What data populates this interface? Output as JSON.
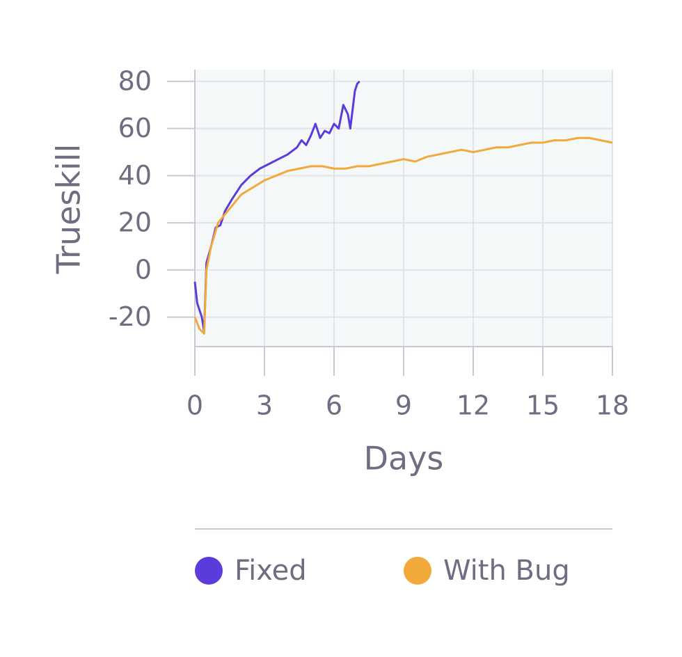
{
  "chart_data": {
    "type": "line",
    "x_label": "Days",
    "y_label": "Trueskill",
    "xlim": [
      0,
      18
    ],
    "xticks": [
      0,
      3,
      6,
      9,
      12,
      15,
      18
    ],
    "ylim": [
      -32.5,
      85
    ],
    "yticks": [
      -20,
      0,
      20,
      40,
      60,
      80
    ],
    "grid": true,
    "legend": "bottom",
    "series": [
      {
        "name": "Fixed",
        "color": "#5b3bdb",
        "x": [
          0,
          0.1,
          0.3,
          0.4,
          0.5,
          0.7,
          0.9,
          1.1,
          1.3,
          1.6,
          2.0,
          2.4,
          2.8,
          3.2,
          3.6,
          4.0,
          4.4,
          4.6,
          4.8,
          5.0,
          5.2,
          5.4,
          5.6,
          5.8,
          6.0,
          6.2,
          6.4,
          6.6,
          6.7,
          6.8,
          6.9,
          7.0,
          7.1
        ],
        "values": [
          -5,
          -14,
          -20,
          -26,
          3,
          10,
          18,
          19,
          25,
          30,
          36,
          40,
          43,
          45,
          47,
          49,
          52,
          55,
          53,
          57,
          62,
          56,
          59,
          58,
          62,
          60,
          70,
          66,
          60,
          68,
          76,
          79,
          80
        ]
      },
      {
        "name": "With Bug",
        "color": "#f2a93b",
        "x": [
          0,
          0.2,
          0.4,
          0.5,
          0.7,
          1.0,
          1.5,
          2,
          2.5,
          3,
          3.5,
          4,
          4.5,
          5,
          5.5,
          6,
          6.5,
          7,
          7.5,
          8,
          8.5,
          9,
          9.5,
          10,
          10.5,
          11,
          11.5,
          12,
          12.5,
          13,
          13.5,
          14,
          14.5,
          15,
          15.5,
          16,
          16.5,
          17,
          17.5,
          18
        ],
        "values": [
          -20,
          -25,
          -27,
          0,
          10,
          20,
          26,
          32,
          35,
          38,
          40,
          42,
          43,
          44,
          44,
          43,
          43,
          44,
          44,
          45,
          46,
          47,
          46,
          48,
          49,
          50,
          51,
          50,
          51,
          52,
          52,
          53,
          54,
          54,
          55,
          55,
          56,
          56,
          55,
          54
        ]
      }
    ]
  }
}
